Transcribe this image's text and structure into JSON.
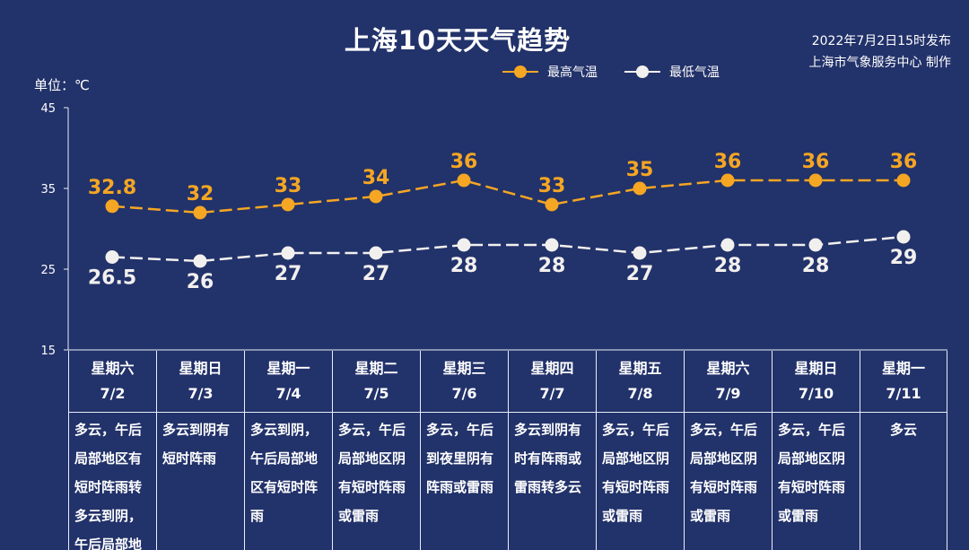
{
  "title": "上海10天天气趋势",
  "issuer": {
    "line1": "2022年7月2日15时发布",
    "line2": "上海市气象服务中心 制作"
  },
  "unit_label": "单位：℃",
  "colors": {
    "high": "#f5a623",
    "low": "#f2f0ee",
    "background": "#22326a"
  },
  "chart_data": {
    "type": "line",
    "categories": [
      "7/2",
      "7/3",
      "7/4",
      "7/5",
      "7/6",
      "7/7",
      "7/8",
      "7/9",
      "7/10",
      "7/11"
    ],
    "series": [
      {
        "name": "最高气温",
        "values": [
          32.8,
          32,
          33,
          34,
          36,
          33,
          35,
          36,
          36,
          36
        ],
        "labels": [
          "32.8",
          "32",
          "33",
          "34",
          "36",
          "33",
          "35",
          "36",
          "36",
          "36"
        ],
        "style": "dashed",
        "color": "#f5a623"
      },
      {
        "name": "最低气温",
        "values": [
          26.5,
          26,
          27,
          27,
          28,
          28,
          27,
          28,
          28,
          29
        ],
        "labels": [
          "26.5",
          "26",
          "27",
          "27",
          "28",
          "28",
          "27",
          "28",
          "28",
          "29"
        ],
        "style": "dashed",
        "color": "#f2f0ee"
      }
    ],
    "ylim": [
      15,
      45
    ],
    "yticks": [
      "15",
      "25",
      "35",
      "45"
    ],
    "legend_position": "top-right",
    "grid": false
  },
  "days": [
    {
      "weekday": "星期六",
      "date": "7/2",
      "weather": "多云，午后局部地区有短时阵雨转多云到阴，午后局部地"
    },
    {
      "weekday": "星期日",
      "date": "7/3",
      "weather": "多云到阴有短时阵雨"
    },
    {
      "weekday": "星期一",
      "date": "7/4",
      "weather": "多云到阴，午后局部地区有短时阵雨"
    },
    {
      "weekday": "星期二",
      "date": "7/5",
      "weather": "多云，午后局部地区阴有短时阵雨或雷雨"
    },
    {
      "weekday": "星期三",
      "date": "7/6",
      "weather": "多云，午后到夜里阴有阵雨或雷雨"
    },
    {
      "weekday": "星期四",
      "date": "7/7",
      "weather": "多云到阴有时有阵雨或雷雨转多云"
    },
    {
      "weekday": "星期五",
      "date": "7/8",
      "weather": "多云，午后局部地区阴有短时阵雨或雷雨"
    },
    {
      "weekday": "星期六",
      "date": "7/9",
      "weather": "多云，午后局部地区阴有短时阵雨或雷雨"
    },
    {
      "weekday": "星期日",
      "date": "7/10",
      "weather": "多云，午后局部地区阴有短时阵雨或雷雨"
    },
    {
      "weekday": "星期一",
      "date": "7/11",
      "weather": "多云"
    }
  ]
}
